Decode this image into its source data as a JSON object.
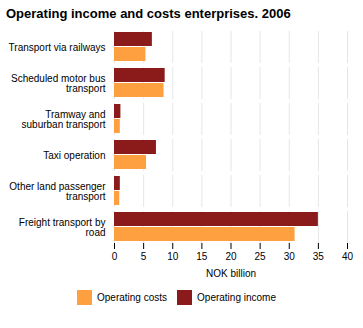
{
  "chart_data": {
    "type": "bar",
    "orientation": "horizontal",
    "title": "Operating income and costs enterprises. 2006",
    "categories": [
      "Freight transport by\nroad",
      "Other land passenger\ntransport",
      "Taxi operation",
      "Tramway and\nsuburban transport",
      "Scheduled motor bus\ntransport",
      "Transport via railways"
    ],
    "series": [
      {
        "name": "Operating costs",
        "color": "#FFA040",
        "values": [
          31.0,
          0.9,
          5.5,
          1.0,
          8.5,
          5.4
        ]
      },
      {
        "name": "Operating income",
        "color": "#8B1A1A",
        "values": [
          35.0,
          1.0,
          7.2,
          1.1,
          8.7,
          6.5
        ]
      }
    ],
    "xlabel": "NOK billion",
    "xlim": [
      0,
      40
    ],
    "xticks": [
      0,
      5,
      10,
      15,
      20,
      25,
      30,
      35,
      40
    ],
    "grid": true,
    "legend": "bottom"
  }
}
